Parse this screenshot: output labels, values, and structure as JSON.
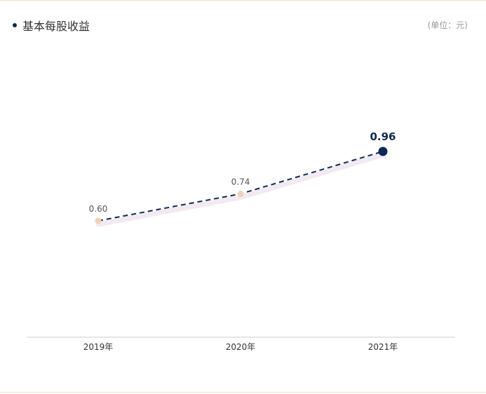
{
  "header": {
    "title": "基本每股收益",
    "unit": "(单位：元)"
  },
  "colors": {
    "line": "#0d2a52",
    "point": "#ecd3b9",
    "highlight_point": "#0d2a52",
    "axis": "#cccccc"
  },
  "chart_data": {
    "type": "line",
    "title": "基本每股收益",
    "unit": "(单位：元)",
    "categories": [
      "2019年",
      "2020年",
      "2021年"
    ],
    "values": [
      0.6,
      0.74,
      0.96
    ],
    "labels": [
      "0.60",
      "0.74",
      "0.96"
    ],
    "highlight_index": 2,
    "line_style": "dashed",
    "grid": false,
    "xlabel": "",
    "ylabel": ""
  }
}
